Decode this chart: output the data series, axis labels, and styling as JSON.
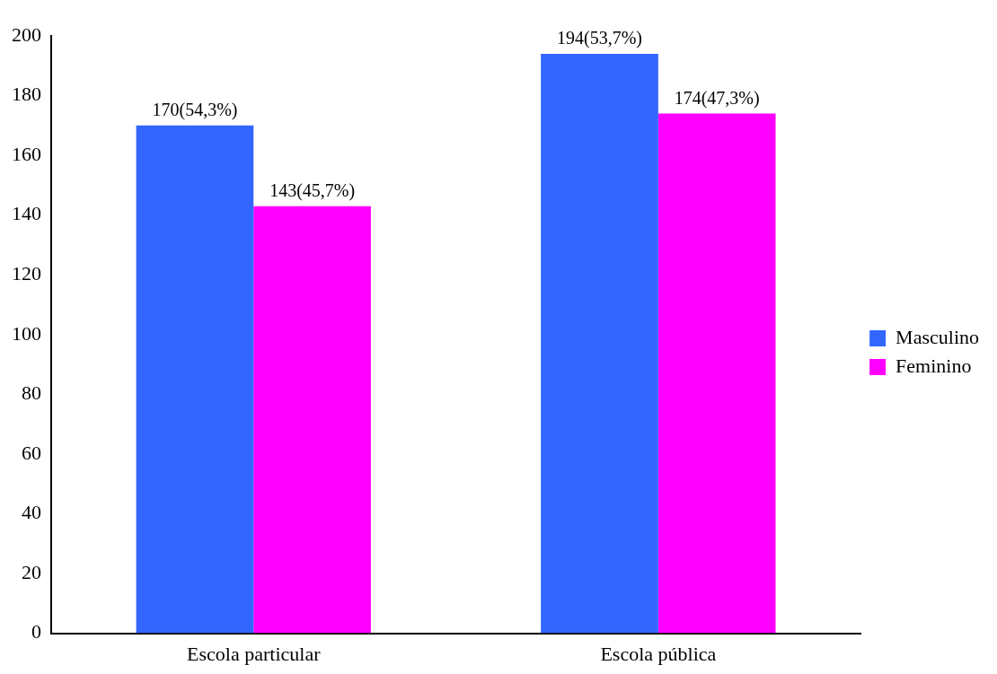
{
  "chart_data": {
    "type": "bar",
    "categories": [
      "Escola particular",
      "Escola pública"
    ],
    "series": [
      {
        "name": "Masculino",
        "color": "#3366ff",
        "values": [
          170,
          194
        ],
        "value_labels": [
          "170(54,3%)",
          "194(53,7%)"
        ]
      },
      {
        "name": "Feminino",
        "color": "#ff00ff",
        "values": [
          143,
          174
        ],
        "value_labels": [
          "143(45,7%)",
          "174(47,3%)"
        ]
      }
    ],
    "ylim": [
      0,
      200
    ],
    "yticks": [
      0,
      20,
      40,
      60,
      80,
      100,
      120,
      140,
      160,
      180,
      200
    ],
    "grid": false,
    "legend": "right"
  }
}
